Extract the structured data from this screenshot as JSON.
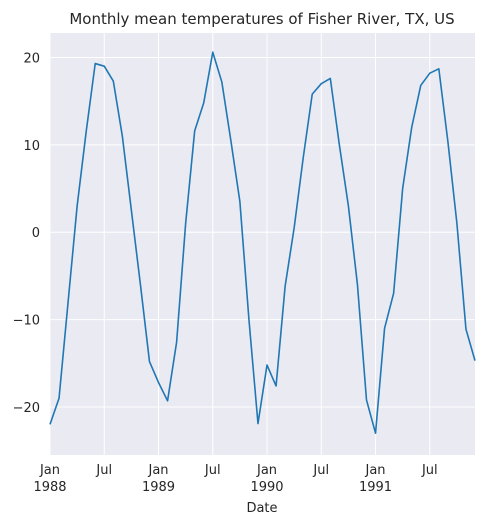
{
  "chart_data": {
    "type": "line",
    "title": "Monthly mean temperatures of Fisher River, TX, US",
    "xlabel": "Date",
    "ylabel": "",
    "ylim": [
      -25.5,
      22.8
    ],
    "yticks": [
      -20,
      -10,
      0,
      10,
      20
    ],
    "xticks": [
      {
        "month": 0,
        "labels": [
          "Jan",
          "1988"
        ]
      },
      {
        "month": 6,
        "labels": [
          "Jul"
        ]
      },
      {
        "month": 12,
        "labels": [
          "Jan",
          "1989"
        ]
      },
      {
        "month": 18,
        "labels": [
          "Jul"
        ]
      },
      {
        "month": 24,
        "labels": [
          "Jan",
          "1990"
        ]
      },
      {
        "month": 30,
        "labels": [
          "Jul"
        ]
      },
      {
        "month": 36,
        "labels": [
          "Jan",
          "1991"
        ]
      },
      {
        "month": 42,
        "labels": [
          "Jul"
        ]
      }
    ],
    "xlim_months": [
      0,
      47
    ],
    "grid": true,
    "background": "#eaeaf2",
    "grid_color": "#ffffff",
    "line_color": "#1f77b4",
    "series": [
      {
        "values": [
          -22.0,
          -19.0,
          -8.0,
          3.0,
          11.5,
          19.3,
          19.0,
          17.3,
          11.0,
          2.5,
          -6.0,
          -14.8,
          -17.2,
          -19.3,
          -12.6,
          1.0,
          11.6,
          14.8,
          20.6,
          17.2,
          10.5,
          3.5,
          -10.0,
          -21.9,
          -15.2,
          -17.6,
          -6.2,
          0.5,
          8.5,
          15.8,
          17.0,
          17.6,
          10.0,
          3.0,
          -6.0,
          -19.2,
          -23.0,
          -11.0,
          -7.0,
          5.0,
          12.0,
          16.8,
          18.2,
          18.7,
          10.4,
          1.0,
          -11.1,
          -14.7
        ]
      }
    ]
  }
}
